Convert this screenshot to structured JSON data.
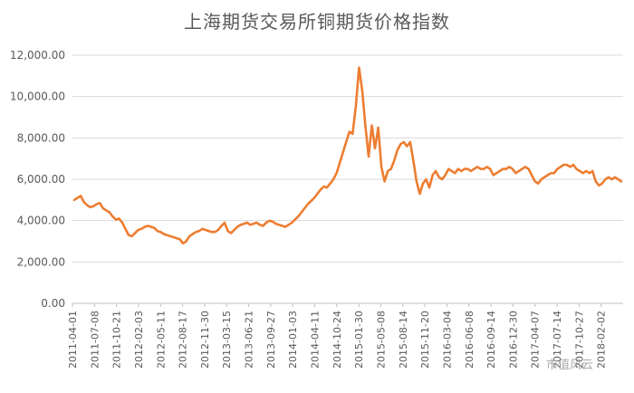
{
  "chart_data": {
    "type": "line",
    "title": "上海期货交易所铜期货价格指数",
    "xlabel": "",
    "ylabel": "",
    "ylim": [
      0,
      12000
    ],
    "yticks": [
      "0.00",
      "2,000.00",
      "4,000.00",
      "6,000.00",
      "8,000.00",
      "10,000.00",
      "12,000.00"
    ],
    "xticks": [
      "2011-04-01",
      "2011-07-08",
      "2011-10-21",
      "2012-02-03",
      "2012-05-11",
      "2012-08-17",
      "2012-11-30",
      "2013-03-15",
      "2013-06-21",
      "2013-09-27",
      "2014-01-03",
      "2014-04-11",
      "2014-10-24",
      "2015-01-30",
      "2015-05-08",
      "2015-08-14",
      "2015-11-20",
      "2016-03-04",
      "2016-06-08",
      "2016-09-14",
      "2016-12-30",
      "2017-04-07",
      "2017-07-14",
      "2017-10-27",
      "2018-02-02"
    ],
    "grid": true,
    "line_color": "#ED7D31",
    "series": [
      {
        "values": [
          5000,
          5100,
          5200,
          4900,
          4750,
          4650,
          4700,
          4800,
          4850,
          4600,
          4500,
          4400,
          4200,
          4050,
          4100,
          3900,
          3600,
          3300,
          3250,
          3400,
          3550,
          3600,
          3700,
          3750,
          3700,
          3650,
          3500,
          3450,
          3350,
          3300,
          3250,
          3200,
          3150,
          3100,
          2900,
          3000,
          3250,
          3350,
          3450,
          3500,
          3600,
          3550,
          3500,
          3450,
          3450,
          3550,
          3750,
          3900,
          3500,
          3400,
          3550,
          3700,
          3800,
          3850,
          3900,
          3800,
          3850,
          3900,
          3800,
          3750,
          3900,
          4000,
          3950,
          3850,
          3800,
          3750,
          3700,
          3800,
          3900,
          4050,
          4200,
          4400,
          4600,
          4800,
          4950,
          5100,
          5300,
          5500,
          5650,
          5600,
          5800,
          6000,
          6300,
          6800,
          7300,
          7800,
          8300,
          8200,
          9500,
          11400,
          10300,
          8600,
          7100,
          8600,
          7500,
          8500,
          6600,
          5900,
          6400,
          6500,
          6900,
          7400,
          7700,
          7800,
          7600,
          7800,
          6900,
          5900,
          5300,
          5800,
          6000,
          5600,
          6200,
          6400,
          6100,
          6000,
          6200,
          6500,
          6400,
          6300,
          6500,
          6400,
          6500,
          6500,
          6400,
          6500,
          6600,
          6500,
          6500,
          6600,
          6500,
          6200,
          6300,
          6400,
          6500,
          6500,
          6600,
          6500,
          6300,
          6400,
          6500,
          6600,
          6500,
          6200,
          5900,
          5800,
          6000,
          6100,
          6200,
          6300,
          6300,
          6500,
          6600,
          6700,
          6700,
          6600,
          6700,
          6500,
          6400,
          6300,
          6400,
          6300,
          6400,
          5900,
          5700,
          5800,
          6000,
          6100,
          6000,
          6100,
          6000,
          5900
        ]
      }
    ]
  },
  "watermark_text": "市值风云"
}
